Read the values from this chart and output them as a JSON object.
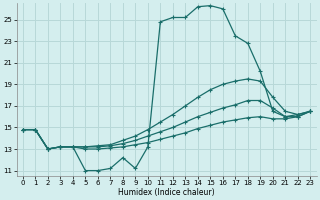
{
  "title": "",
  "xlabel": "Humidex (Indice chaleur)",
  "background_color": "#d4eeee",
  "grid_color": "#b8d8d8",
  "line_color": "#1a6e6a",
  "xlim": [
    -0.5,
    23.5
  ],
  "ylim": [
    10.5,
    26.5
  ],
  "xticks": [
    0,
    1,
    2,
    3,
    4,
    5,
    6,
    7,
    8,
    9,
    10,
    11,
    12,
    13,
    14,
    15,
    16,
    17,
    18,
    19,
    20,
    21,
    22,
    23
  ],
  "yticks": [
    11,
    13,
    15,
    17,
    19,
    21,
    23,
    25
  ],
  "line1_x": [
    0,
    1,
    2,
    3,
    4,
    5,
    6,
    7,
    8,
    9,
    10,
    11,
    12,
    13,
    14,
    15,
    16,
    17,
    18,
    19,
    20,
    21,
    22,
    23
  ],
  "line1_y": [
    14.8,
    14.8,
    13.0,
    13.2,
    13.2,
    11.0,
    11.0,
    11.2,
    12.2,
    11.2,
    13.2,
    24.8,
    25.2,
    25.2,
    26.2,
    26.3,
    26.0,
    23.5,
    22.8,
    20.2,
    16.5,
    16.0,
    16.2,
    16.5
  ],
  "line2_x": [
    0,
    1,
    2,
    3,
    4,
    5,
    6,
    7,
    8,
    9,
    10,
    11,
    12,
    13,
    14,
    15,
    16,
    17,
    18,
    19,
    20,
    21,
    22,
    23
  ],
  "line2_y": [
    14.8,
    14.8,
    13.0,
    13.2,
    13.2,
    13.2,
    13.3,
    13.4,
    13.8,
    14.2,
    14.8,
    15.5,
    16.2,
    17.0,
    17.8,
    18.5,
    19.0,
    19.3,
    19.5,
    19.3,
    17.8,
    16.5,
    16.2,
    16.5
  ],
  "line3_x": [
    0,
    1,
    2,
    3,
    4,
    5,
    6,
    7,
    8,
    9,
    10,
    11,
    12,
    13,
    14,
    15,
    16,
    17,
    18,
    19,
    20,
    21,
    22,
    23
  ],
  "line3_y": [
    14.8,
    14.8,
    13.0,
    13.2,
    13.2,
    13.2,
    13.2,
    13.3,
    13.5,
    13.8,
    14.2,
    14.6,
    15.0,
    15.5,
    16.0,
    16.4,
    16.8,
    17.1,
    17.5,
    17.5,
    16.8,
    16.0,
    16.0,
    16.5
  ],
  "line4_x": [
    0,
    1,
    2,
    3,
    4,
    5,
    6,
    7,
    8,
    9,
    10,
    11,
    12,
    13,
    14,
    15,
    16,
    17,
    18,
    19,
    20,
    21,
    22,
    23
  ],
  "line4_y": [
    14.8,
    14.8,
    13.0,
    13.2,
    13.2,
    13.0,
    13.0,
    13.1,
    13.2,
    13.4,
    13.6,
    13.9,
    14.2,
    14.5,
    14.9,
    15.2,
    15.5,
    15.7,
    15.9,
    16.0,
    15.8,
    15.8,
    16.0,
    16.5
  ]
}
